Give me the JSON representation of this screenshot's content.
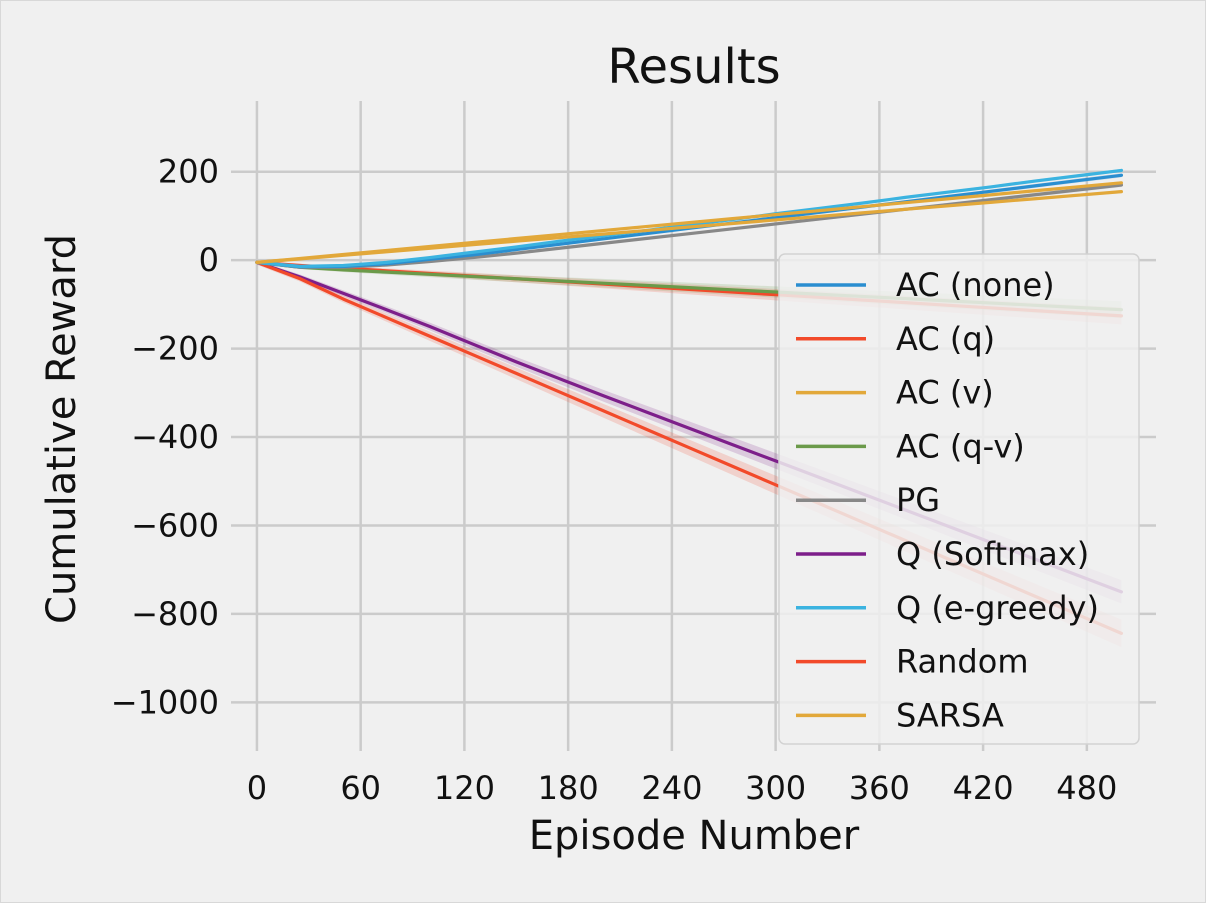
{
  "chart_data": {
    "type": "line",
    "title": "Results",
    "xlabel": "Episode Number",
    "ylabel": "Cumulative Reward",
    "xlim": [
      -15,
      520
    ],
    "ylim": [
      -1110,
      360
    ],
    "x_ticks": [
      0,
      60,
      120,
      180,
      240,
      300,
      360,
      420,
      480
    ],
    "x_tick_labels": [
      "0",
      "60",
      "120",
      "180",
      "240",
      "300",
      "360",
      "420",
      "480"
    ],
    "y_ticks": [
      200,
      0,
      -200,
      -400,
      -600,
      -800,
      -1000
    ],
    "y_tick_labels": [
      "200",
      "0",
      "−200",
      "−400",
      "−600",
      "−800",
      "−1000"
    ],
    "grid": true,
    "legend_position": "right",
    "x": [
      0,
      25,
      50,
      75,
      100,
      125,
      150,
      175,
      200,
      225,
      250,
      275,
      300,
      325,
      350,
      375,
      400,
      425,
      450,
      475,
      500
    ],
    "series": [
      {
        "name": "AC (none)",
        "color": "#2a8ed0",
        "values": [
          -5,
          -15,
          -14,
          -8,
          2,
          12,
          24,
          36,
          48,
          60,
          72,
          84,
          96,
          108,
          120,
          132,
          144,
          156,
          168,
          180,
          192
        ],
        "band": 4
      },
      {
        "name": "AC (q)",
        "color": "#f24a2a",
        "values": [
          -5,
          -12,
          -18,
          -24,
          -30,
          -36,
          -42,
          -48,
          -54,
          -60,
          -66,
          -72,
          -78,
          -84,
          -90,
          -96,
          -102,
          -108,
          -114,
          -120,
          -126
        ],
        "band": 16
      },
      {
        "name": "AC (v)",
        "color": "#e2a83a",
        "values": [
          -5,
          3,
          11,
          19,
          27,
          35,
          43,
          51,
          59,
          67,
          75,
          83,
          91,
          99,
          107,
          115,
          123,
          131,
          139,
          147,
          155
        ],
        "band": 3
      },
      {
        "name": "AC (q-v)",
        "color": "#6b9a4a",
        "values": [
          -5,
          -16,
          -22,
          -27,
          -32,
          -37,
          -42,
          -47,
          -52,
          -57,
          -62,
          -67,
          -72,
          -77,
          -82,
          -87,
          -92,
          -97,
          -102,
          -107,
          -112
        ],
        "band": 16
      },
      {
        "name": "PG",
        "color": "#888888",
        "values": [
          -5,
          -16,
          -16,
          -11,
          -3,
          6,
          16,
          27,
          38,
          49,
          60,
          71,
          82,
          93,
          104,
          115,
          126,
          137,
          148,
          159,
          170
        ],
        "band": 4
      },
      {
        "name": "Q (Softmax)",
        "color": "#7d1f8a",
        "values": [
          -5,
          -38,
          -75,
          -112,
          -150,
          -190,
          -230,
          -268,
          -306,
          -343,
          -380,
          -417,
          -454,
          -491,
          -528,
          -565,
          -602,
          -639,
          -676,
          -713,
          -750
        ],
        "band": 22
      },
      {
        "name": "Q (e-greedy)",
        "color": "#3bb3e0",
        "values": [
          -5,
          -14,
          -12,
          -5,
          6,
          18,
          30,
          43,
          55,
          67,
          80,
          92,
          105,
          117,
          129,
          142,
          154,
          166,
          179,
          191,
          203
        ],
        "band": 3
      },
      {
        "name": "Random",
        "color": "#f24a2a",
        "values": [
          -5,
          -42,
          -88,
          -130,
          -172,
          -214,
          -256,
          -298,
          -340,
          -382,
          -424,
          -466,
          -508,
          -550,
          -592,
          -634,
          -676,
          -718,
          -760,
          -802,
          -844
        ],
        "band": 26
      },
      {
        "name": "SARSA",
        "color": "#e2a83a",
        "values": [
          -5,
          4,
          13,
          22,
          31,
          40,
          49,
          58,
          67,
          76,
          85,
          94,
          103,
          112,
          121,
          130,
          139,
          148,
          157,
          166,
          175
        ],
        "band": 3
      }
    ]
  }
}
